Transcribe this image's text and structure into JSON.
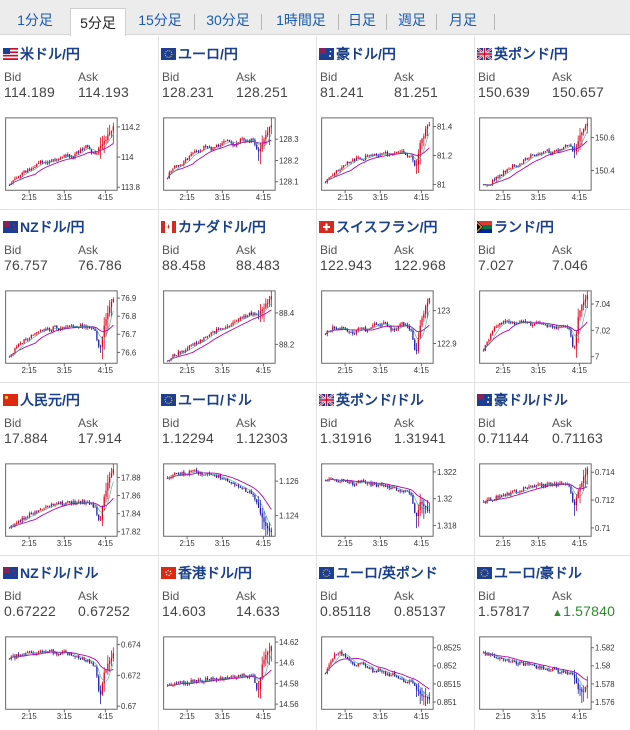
{
  "tabs": [
    {
      "label": "1分足",
      "active": false
    },
    {
      "label": "5分足",
      "active": true
    },
    {
      "label": "15分足",
      "active": false
    },
    {
      "label": "30分足",
      "active": false
    },
    {
      "label": "1時間足",
      "active": false
    },
    {
      "label": "日足",
      "active": false
    },
    {
      "label": "週足",
      "active": false
    },
    {
      "label": "月足",
      "active": false
    }
  ],
  "labels": {
    "bid": "Bid",
    "ask": "Ask"
  },
  "colors": {
    "up": "#e0001b",
    "down": "#1a1ab4",
    "ma": "#b000b0",
    "ma2": "#2aa090",
    "axis": "#333333"
  },
  "pairs": [
    {
      "name": "米ドル/円",
      "flag": "us",
      "bid": "114.189",
      "ask": "114.193",
      "chart_data": {
        "type": "candlestick",
        "x_ticks": [
          "2:15",
          "3:15",
          "4:15"
        ],
        "y_ticks": [
          "114.2",
          "114",
          "113.8"
        ],
        "ylim": [
          113.78,
          114.26
        ],
        "trend": [
          113.82,
          113.86,
          113.88,
          113.9,
          113.91,
          113.93,
          113.95,
          113.97,
          113.96,
          113.98,
          113.99,
          114.0,
          114.02,
          114.01,
          114.0,
          114.03,
          114.05,
          114.07,
          114.04,
          114.02,
          114.06,
          114.1,
          114.15,
          114.21
        ]
      }
    },
    {
      "name": "ユーロ/円",
      "flag": "eu",
      "bid": "128.231",
      "ask": "128.251",
      "chart_data": {
        "type": "candlestick",
        "x_ticks": [
          "2:15",
          "3:15",
          "4:15"
        ],
        "y_ticks": [
          "128.3",
          "128.2",
          "128.1"
        ],
        "ylim": [
          128.06,
          128.4
        ],
        "trend": [
          128.12,
          128.16,
          128.18,
          128.17,
          128.2,
          128.22,
          128.25,
          128.24,
          128.26,
          128.27,
          128.25,
          128.27,
          128.28,
          128.29,
          128.28,
          128.27,
          128.29,
          128.3,
          128.29,
          128.3,
          128.23,
          128.28,
          128.33,
          128.36
        ]
      }
    },
    {
      "name": "豪ドル/円",
      "flag": "au",
      "bid": "81.241",
      "ask": "81.251",
      "chart_data": {
        "type": "candlestick",
        "x_ticks": [
          "2:15",
          "3:15",
          "4:15"
        ],
        "y_ticks": [
          "81.4",
          "81.2",
          "81"
        ],
        "ylim": [
          80.96,
          81.46
        ],
        "trend": [
          81.02,
          81.05,
          81.08,
          81.1,
          81.12,
          81.15,
          81.17,
          81.18,
          81.17,
          81.19,
          81.2,
          81.21,
          81.2,
          81.22,
          81.21,
          81.2,
          81.22,
          81.23,
          81.21,
          81.2,
          81.1,
          81.28,
          81.36,
          81.42
        ]
      }
    },
    {
      "name": "英ポンド/円",
      "flag": "gb",
      "bid": "150.639",
      "ask": "150.657",
      "chart_data": {
        "type": "candlestick",
        "x_ticks": [
          "2:15",
          "3:15",
          "4:15"
        ],
        "y_ticks": [
          "150.6",
          "150.4"
        ],
        "ylim": [
          150.28,
          150.72
        ],
        "trend": [
          150.32,
          150.3,
          150.34,
          150.36,
          150.38,
          150.4,
          150.42,
          150.44,
          150.43,
          150.46,
          150.48,
          150.5,
          150.49,
          150.51,
          150.52,
          150.5,
          150.53,
          150.52,
          150.54,
          150.56,
          150.5,
          150.58,
          150.64,
          150.68
        ]
      }
    },
    {
      "name": "NZドル/円",
      "flag": "nz",
      "bid": "76.757",
      "ask": "76.786",
      "chart_data": {
        "type": "candlestick",
        "x_ticks": [
          "2:15",
          "3:15",
          "4:15"
        ],
        "y_ticks": [
          "76.9",
          "76.8",
          "76.7",
          "76.6"
        ],
        "ylim": [
          76.54,
          76.94
        ],
        "trend": [
          76.58,
          76.61,
          76.64,
          76.66,
          76.68,
          76.7,
          76.71,
          76.72,
          76.73,
          76.72,
          76.74,
          76.73,
          76.74,
          76.75,
          76.74,
          76.73,
          76.75,
          76.74,
          76.73,
          76.72,
          76.6,
          76.76,
          76.84,
          76.9
        ]
      }
    },
    {
      "name": "カナダドル/円",
      "flag": "ca",
      "bid": "88.458",
      "ask": "88.483",
      "chart_data": {
        "type": "candlestick",
        "x_ticks": [
          "2:15",
          "3:15",
          "4:15"
        ],
        "y_ticks": [
          "88.4",
          "88.2"
        ],
        "ylim": [
          88.08,
          88.54
        ],
        "trend": [
          88.1,
          88.12,
          88.14,
          88.15,
          88.17,
          88.19,
          88.2,
          88.22,
          88.24,
          88.26,
          88.28,
          88.29,
          88.3,
          88.32,
          88.33,
          88.35,
          88.36,
          88.38,
          88.39,
          88.4,
          88.38,
          88.42,
          88.46,
          88.5
        ]
      }
    },
    {
      "name": "スイスフラン/円",
      "flag": "ch",
      "bid": "122.943",
      "ask": "122.968",
      "chart_data": {
        "type": "candlestick",
        "x_ticks": [
          "2:15",
          "3:15",
          "4:15"
        ],
        "y_ticks": [
          "123",
          "122.9"
        ],
        "ylim": [
          122.84,
          123.06
        ],
        "trend": [
          122.93,
          122.94,
          122.95,
          122.94,
          122.95,
          122.94,
          122.93,
          122.94,
          122.95,
          122.94,
          122.95,
          122.96,
          122.95,
          122.96,
          122.95,
          122.94,
          122.95,
          122.96,
          122.95,
          122.94,
          122.86,
          122.96,
          123.0,
          123.04
        ]
      }
    },
    {
      "name": "ランド/円",
      "flag": "za",
      "bid": "7.027",
      "ask": "7.046",
      "chart_data": {
        "type": "candlestick",
        "x_ticks": [
          "2:15",
          "3:15",
          "4:15"
        ],
        "y_ticks": [
          "7.04",
          "7.02",
          "7"
        ],
        "ylim": [
          6.995,
          7.05
        ],
        "trend": [
          7.005,
          7.012,
          7.02,
          7.024,
          7.026,
          7.027,
          7.025,
          7.026,
          7.027,
          7.026,
          7.025,
          7.024,
          7.025,
          7.024,
          7.023,
          7.024,
          7.022,
          7.023,
          7.022,
          7.021,
          7.003,
          7.03,
          7.04,
          7.046
        ]
      }
    },
    {
      "name": "人民元/円",
      "flag": "cn",
      "bid": "17.884",
      "ask": "17.914",
      "chart_data": {
        "type": "candlestick",
        "x_ticks": [
          "2:15",
          "3:15",
          "4:15"
        ],
        "y_ticks": [
          "17.88",
          "17.86",
          "17.84",
          "17.82"
        ],
        "ylim": [
          17.815,
          17.895
        ],
        "trend": [
          17.825,
          17.828,
          17.832,
          17.835,
          17.837,
          17.84,
          17.842,
          17.845,
          17.846,
          17.848,
          17.85,
          17.852,
          17.851,
          17.853,
          17.852,
          17.851,
          17.853,
          17.852,
          17.85,
          17.848,
          17.828,
          17.86,
          17.878,
          17.89
        ]
      }
    },
    {
      "name": "ユーロ/ドル",
      "flag": "eu",
      "bid": "1.12294",
      "ask": "1.12303",
      "chart_data": {
        "type": "candlestick",
        "x_ticks": [
          "2:15",
          "3:15",
          "4:15"
        ],
        "y_ticks": [
          "1.126",
          "1.124"
        ],
        "ylim": [
          1.1228,
          1.127
        ],
        "trend": [
          1.1262,
          1.1263,
          1.1264,
          1.1265,
          1.1264,
          1.1265,
          1.1266,
          1.1265,
          1.1264,
          1.1265,
          1.1264,
          1.1263,
          1.1262,
          1.1261,
          1.1259,
          1.1258,
          1.1256,
          1.1255,
          1.1254,
          1.1252,
          1.1246,
          1.1238,
          1.1234,
          1.123
        ]
      }
    },
    {
      "name": "英ポンド/ドル",
      "flag": "gb",
      "bid": "1.31916",
      "ask": "1.31941",
      "chart_data": {
        "type": "candlestick",
        "x_ticks": [
          "2:15",
          "3:15",
          "4:15"
        ],
        "y_ticks": [
          "1.322",
          "1.32",
          "1.318"
        ],
        "ylim": [
          1.3172,
          1.3226
        ],
        "trend": [
          1.3214,
          1.3215,
          1.3213,
          1.3212,
          1.3214,
          1.3213,
          1.3211,
          1.3212,
          1.3213,
          1.3212,
          1.3211,
          1.321,
          1.3211,
          1.321,
          1.3209,
          1.3208,
          1.3207,
          1.3206,
          1.3205,
          1.3203,
          1.3185,
          1.3198,
          1.3193,
          1.3192
        ]
      }
    },
    {
      "name": "豪ドル/ドル",
      "flag": "au",
      "bid": "0.71144",
      "ask": "0.71163",
      "chart_data": {
        "type": "candlestick",
        "x_ticks": [
          "2:15",
          "3:15",
          "4:15"
        ],
        "y_ticks": [
          "0.714",
          "0.712",
          "0.71"
        ],
        "ylim": [
          0.7094,
          0.7146
        ],
        "trend": [
          0.7119,
          0.712,
          0.7121,
          0.7122,
          0.7123,
          0.7124,
          0.7125,
          0.7126,
          0.7127,
          0.7128,
          0.7129,
          0.713,
          0.7131,
          0.713,
          0.7131,
          0.7132,
          0.7131,
          0.7132,
          0.7131,
          0.713,
          0.7115,
          0.7125,
          0.7135,
          0.7142
        ]
      }
    },
    {
      "name": "NZドル/ドル",
      "flag": "nz",
      "bid": "0.67222",
      "ask": "0.67252",
      "chart_data": {
        "type": "candlestick",
        "x_ticks": [
          "2:15",
          "3:15",
          "4:15"
        ],
        "y_ticks": [
          "0.674",
          "0.672",
          "0.67"
        ],
        "ylim": [
          0.6698,
          0.6745
        ],
        "trend": [
          0.6731,
          0.6732,
          0.6733,
          0.6734,
          0.6735,
          0.6734,
          0.6735,
          0.6736,
          0.6735,
          0.6736,
          0.6735,
          0.6734,
          0.6735,
          0.6734,
          0.6733,
          0.6732,
          0.6731,
          0.673,
          0.6728,
          0.6726,
          0.6705,
          0.6722,
          0.6728,
          0.6735
        ]
      }
    },
    {
      "name": "香港ドル/円",
      "flag": "hk",
      "bid": "14.603",
      "ask": "14.633",
      "chart_data": {
        "type": "candlestick",
        "x_ticks": [
          "2:15",
          "3:15",
          "4:15"
        ],
        "y_ticks": [
          "14.62",
          "14.6",
          "14.58",
          "14.56"
        ],
        "ylim": [
          14.555,
          14.625
        ],
        "trend": [
          14.578,
          14.579,
          14.58,
          14.581,
          14.58,
          14.582,
          14.583,
          14.582,
          14.583,
          14.584,
          14.585,
          14.584,
          14.585,
          14.586,
          14.585,
          14.586,
          14.587,
          14.588,
          14.587,
          14.588,
          14.57,
          14.6,
          14.61,
          14.615
        ]
      }
    },
    {
      "name": "ユーロ/英ポンド",
      "flag": "eu",
      "bid": "0.85118",
      "ask": "0.85137",
      "chart_data": {
        "type": "candlestick",
        "x_ticks": [
          "2:15",
          "3:15",
          "4:15"
        ],
        "y_ticks": [
          "0.8525",
          "0.852",
          "0.8515",
          "0.851"
        ],
        "ylim": [
          0.8508,
          0.8528
        ],
        "trend": [
          0.8518,
          0.8521,
          0.8523,
          0.8524,
          0.8523,
          0.8522,
          0.8521,
          0.852,
          0.8521,
          0.852,
          0.8519,
          0.8518,
          0.8519,
          0.8518,
          0.8517,
          0.8518,
          0.8517,
          0.8516,
          0.8515,
          0.8516,
          0.8514,
          0.8512,
          0.8511,
          0.8511
        ]
      }
    },
    {
      "name": "ユーロ/豪ドル",
      "flag": "eu",
      "bid": "1.57817",
      "ask": "1.57840",
      "ask_up": true,
      "chart_data": {
        "type": "candlestick",
        "x_ticks": [
          "2:15",
          "3:15",
          "4:15"
        ],
        "y_ticks": [
          "1.582",
          "1.58",
          "1.578",
          "1.576"
        ],
        "ylim": [
          1.5752,
          1.5832
        ],
        "trend": [
          1.5815,
          1.5812,
          1.581,
          1.5808,
          1.5807,
          1.5806,
          1.5805,
          1.5804,
          1.5803,
          1.5802,
          1.5801,
          1.58,
          1.5799,
          1.5798,
          1.5797,
          1.5796,
          1.5795,
          1.5794,
          1.5793,
          1.5792,
          1.579,
          1.5775,
          1.577,
          1.5778
        ]
      }
    }
  ]
}
